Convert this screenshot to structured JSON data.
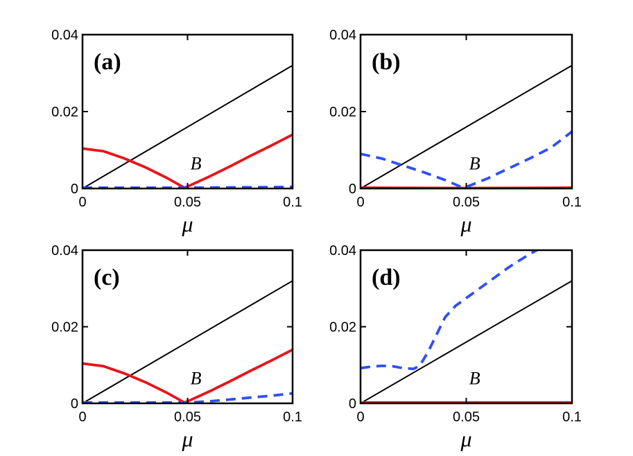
{
  "chart_data": [
    {
      "type": "line",
      "panel_label": "(a)",
      "xlabel": "μ",
      "ylabel": "",
      "xlim": [
        0,
        0.1
      ],
      "ylim": [
        0,
        0.04
      ],
      "xticks": [
        0,
        0.05,
        0.1
      ],
      "xtick_labels": [
        "0",
        "0.05",
        "0.1"
      ],
      "yticks": [
        0,
        0.02,
        0.04
      ],
      "ytick_labels": [
        "0",
        "0.02",
        "0.04"
      ],
      "annotation": {
        "text": "B",
        "x": 0.054,
        "y": 0.005
      },
      "series": [
        {
          "name": "black-line",
          "color": "#000000",
          "style": "solid",
          "x": [
            0,
            0.1
          ],
          "y": [
            0,
            0.032
          ]
        },
        {
          "name": "red-line",
          "color": "#e8141b",
          "style": "solid",
          "x": [
            0,
            0.01,
            0.02,
            0.03,
            0.04,
            0.0485,
            0.05,
            0.06,
            0.07,
            0.08,
            0.09,
            0.1
          ],
          "y": [
            0.0104,
            0.0097,
            0.0078,
            0.0055,
            0.0028,
            0.0002,
            0.0005,
            0.003,
            0.0057,
            0.0085,
            0.0112,
            0.014
          ]
        },
        {
          "name": "blue-dashed-line",
          "color": "#2f4ff5",
          "style": "dashed",
          "x": [
            0,
            0.05,
            0.1
          ],
          "y": [
            0.0002,
            0.0002,
            0.0004
          ]
        }
      ]
    },
    {
      "type": "line",
      "panel_label": "(b)",
      "xlabel": "μ",
      "ylabel": "",
      "xlim": [
        0,
        0.1
      ],
      "ylim": [
        0,
        0.04
      ],
      "xticks": [
        0,
        0.05,
        0.1
      ],
      "xtick_labels": [
        "0",
        "0.05",
        "0.1"
      ],
      "yticks": [
        0,
        0.02,
        0.04
      ],
      "ytick_labels": [
        "0",
        "0.02",
        "0.04"
      ],
      "annotation": {
        "text": "B",
        "x": 0.054,
        "y": 0.005
      },
      "series": [
        {
          "name": "black-line",
          "color": "#000000",
          "style": "solid",
          "x": [
            0,
            0.1
          ],
          "y": [
            0,
            0.032
          ]
        },
        {
          "name": "red-line",
          "color": "#e8141b",
          "style": "solid",
          "x": [
            0,
            0.05,
            0.1
          ],
          "y": [
            0.0002,
            0.0001,
            0.0002
          ]
        },
        {
          "name": "blue-dashed-line",
          "color": "#2f4ff5",
          "style": "dashed",
          "x": [
            0,
            0.01,
            0.02,
            0.03,
            0.04,
            0.048,
            0.05,
            0.06,
            0.07,
            0.08,
            0.09,
            0.1
          ],
          "y": [
            0.009,
            0.0078,
            0.006,
            0.0042,
            0.0022,
            0.0003,
            0.0004,
            0.0026,
            0.0052,
            0.0078,
            0.0106,
            0.0148
          ]
        }
      ]
    },
    {
      "type": "line",
      "panel_label": "(c)",
      "xlabel": "μ",
      "ylabel": "",
      "xlim": [
        0,
        0.1
      ],
      "ylim": [
        0,
        0.04
      ],
      "xticks": [
        0,
        0.05,
        0.1
      ],
      "xtick_labels": [
        "0",
        "0.05",
        "0.1"
      ],
      "yticks": [
        0,
        0.02,
        0.04
      ],
      "ytick_labels": [
        "0",
        "0.02",
        "0.04"
      ],
      "annotation": {
        "text": "B",
        "x": 0.054,
        "y": 0.005
      },
      "series": [
        {
          "name": "black-line",
          "color": "#000000",
          "style": "solid",
          "x": [
            0,
            0.1
          ],
          "y": [
            0,
            0.032
          ]
        },
        {
          "name": "red-line",
          "color": "#e8141b",
          "style": "solid",
          "x": [
            0,
            0.01,
            0.02,
            0.03,
            0.04,
            0.0485,
            0.05,
            0.06,
            0.07,
            0.08,
            0.09,
            0.1
          ],
          "y": [
            0.0104,
            0.0097,
            0.0078,
            0.0055,
            0.0028,
            0.0002,
            0.0005,
            0.003,
            0.0057,
            0.0085,
            0.0112,
            0.014
          ]
        },
        {
          "name": "blue-dashed-line",
          "color": "#2f4ff5",
          "style": "dashed",
          "x": [
            0,
            0.03,
            0.05,
            0.06,
            0.07,
            0.08,
            0.09,
            0.1
          ],
          "y": [
            0.0002,
            0.0002,
            0.0002,
            0.0005,
            0.001,
            0.0015,
            0.002,
            0.0026
          ]
        }
      ]
    },
    {
      "type": "line",
      "panel_label": "(d)",
      "xlabel": "μ",
      "ylabel": "",
      "xlim": [
        0,
        0.1
      ],
      "ylim": [
        0,
        0.04
      ],
      "xticks": [
        0,
        0.05,
        0.1
      ],
      "xtick_labels": [
        "0",
        "0.05",
        "0.1"
      ],
      "yticks": [
        0,
        0.02,
        0.04
      ],
      "ytick_labels": [
        "0",
        "0.02",
        "0.04"
      ],
      "annotation": {
        "text": "B",
        "x": 0.054,
        "y": 0.005
      },
      "series": [
        {
          "name": "black-line",
          "color": "#000000",
          "style": "solid",
          "x": [
            0,
            0.1
          ],
          "y": [
            0,
            0.032
          ]
        },
        {
          "name": "red-line",
          "color": "#e8141b",
          "style": "solid",
          "x": [
            0,
            0.05,
            0.1
          ],
          "y": [
            0.0002,
            0.0002,
            0.0002
          ]
        },
        {
          "name": "blue-dashed-line",
          "color": "#2f4ff5",
          "style": "dashed",
          "x": [
            0,
            0.005,
            0.01,
            0.015,
            0.02,
            0.025,
            0.028,
            0.032,
            0.036,
            0.04,
            0.045,
            0.05,
            0.06,
            0.07,
            0.08,
            0.085
          ],
          "y": [
            0.0092,
            0.0096,
            0.0098,
            0.0097,
            0.0092,
            0.009,
            0.0098,
            0.0135,
            0.018,
            0.0225,
            0.0255,
            0.0275,
            0.0315,
            0.0355,
            0.039,
            0.0405
          ]
        }
      ]
    }
  ]
}
